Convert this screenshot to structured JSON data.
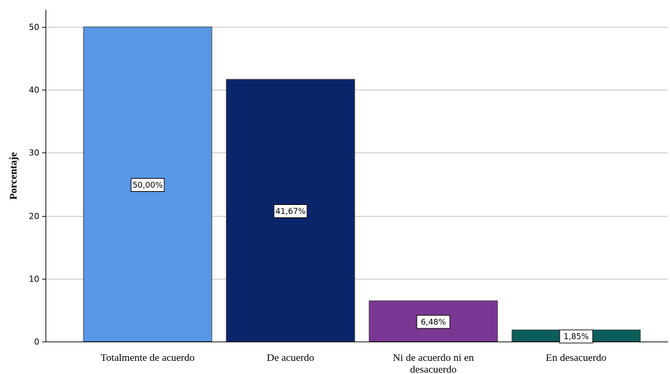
{
  "chart_data": {
    "type": "bar",
    "categories": [
      "Totalmente de acuerdo",
      "De acuerdo",
      "Ni de acuerdo ni en desacuerdo",
      "En desacuerdo"
    ],
    "category_label_lines": [
      [
        "Totalmente de acuerdo"
      ],
      [
        "De acuerdo"
      ],
      [
        "Ni de acuerdo ni en",
        "desacuerdo"
      ],
      [
        "En desacuerdo"
      ]
    ],
    "values": [
      50.0,
      41.67,
      6.48,
      1.85
    ],
    "data_labels": [
      "50,00%",
      "41,67%",
      "6,48%",
      "1,85%"
    ],
    "colors": [
      "#5897e6",
      "#0b256b",
      "#7a3793",
      "#0b5e5b"
    ],
    "title": "",
    "xlabel": "",
    "ylabel": "Porcentaje",
    "ylim": [
      0,
      50
    ],
    "yticks": [
      0,
      10,
      20,
      30,
      40,
      50
    ],
    "grid": true,
    "legend": "none"
  }
}
